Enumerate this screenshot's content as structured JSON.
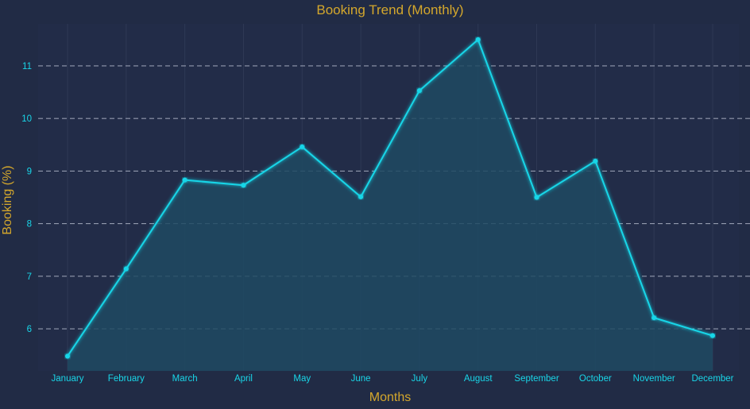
{
  "chart_data": {
    "type": "area",
    "title": "Booking Trend (Monthly)",
    "xlabel": "Months",
    "ylabel": "Booking (%)",
    "categories": [
      "January",
      "February",
      "March",
      "April",
      "May",
      "June",
      "July",
      "August",
      "September",
      "October",
      "November",
      "December"
    ],
    "series": [
      {
        "values": [
          5.48,
          7.14,
          8.83,
          8.73,
          9.46,
          8.51,
          10.53,
          11.5,
          8.5,
          9.19,
          6.21,
          5.87
        ]
      }
    ],
    "yticks": [
      6,
      7,
      8,
      9,
      10,
      11
    ],
    "ylim": [
      5.2,
      11.8
    ],
    "grid": "horizontal dashed",
    "legend": "none",
    "colors": {
      "background": "#212b45",
      "line": "#19d6e8",
      "fill": "#1f4a63",
      "text_accent": "#d4a72c",
      "tick": "#19d6e8",
      "grid": "#b9bfd0"
    }
  }
}
